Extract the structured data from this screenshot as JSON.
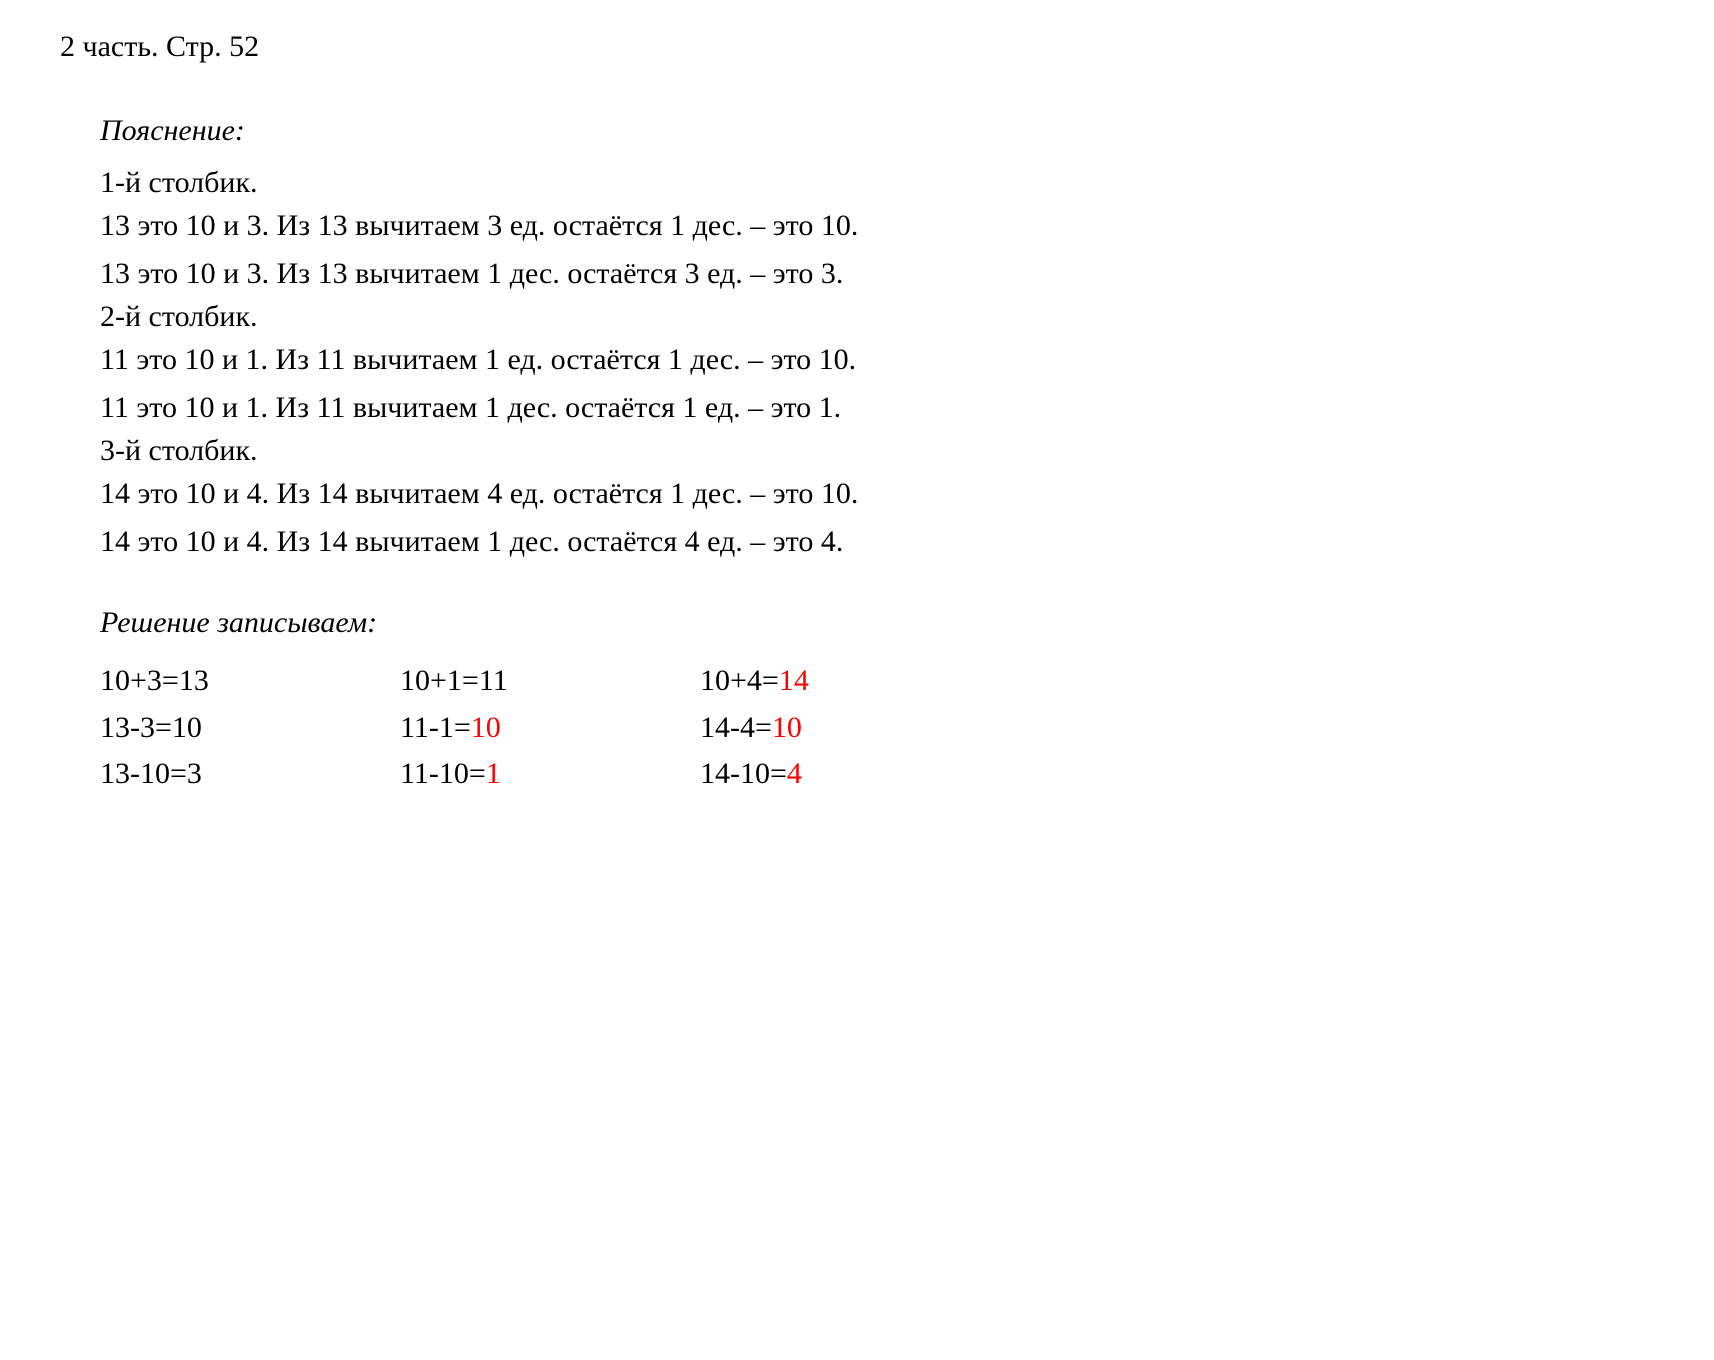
{
  "header": "2 часть. Стр. 52",
  "explanation": {
    "title": "Пояснение:",
    "columns": [
      {
        "header": "1-й столбик.",
        "lines": [
          "13 это 10 и 3. Из 13 вычитаем 3 ед. остаётся 1 дес. – это 10.",
          "13 это 10 и 3. Из 13 вычитаем 1 дес. остаётся 3 ед. – это 3."
        ]
      },
      {
        "header": "2-й столбик.",
        "lines": [
          "11 это 10 и 1. Из 11 вычитаем 1 ед. остаётся 1 дес. – это 10.",
          "11 это 10 и 1. Из 11 вычитаем 1 дес. остаётся 1 ед. – это 1."
        ]
      },
      {
        "header": "3-й столбик.",
        "lines": [
          "14 это 10 и 4. Из 14 вычитаем 4 ед. остаётся 1 дес. – это 10.",
          "14 это 10 и 4. Из 14 вычитаем 1 дес. остаётся 4 ед. – это 4."
        ]
      }
    ]
  },
  "solution": {
    "title": "Решение записываем:",
    "rows": [
      [
        {
          "lhs": "10+3=",
          "rhs": "13",
          "red": false
        },
        {
          "lhs": "10+1=",
          "rhs": "11",
          "red": false
        },
        {
          "lhs": "10+4=",
          "rhs": "14",
          "red": true
        }
      ],
      [
        {
          "lhs": "13-3=",
          "rhs": "10",
          "red": false
        },
        {
          "lhs": "11-1=",
          "rhs": "10",
          "red": true
        },
        {
          "lhs": "14-4=",
          "rhs": "10",
          "red": true
        }
      ],
      [
        {
          "lhs": "13-10=",
          "rhs": "3",
          "red": false
        },
        {
          "lhs": "11-10=",
          "rhs": "1",
          "red": true
        },
        {
          "lhs": "14-10=",
          "rhs": "4",
          "red": true
        }
      ]
    ]
  },
  "colors": {
    "background": "#ffffff",
    "text": "#000000",
    "highlight": "#ff0000"
  },
  "typography": {
    "font_family": "Georgia, Times New Roman, serif",
    "body_fontsize": 30,
    "italic_titles": true
  }
}
